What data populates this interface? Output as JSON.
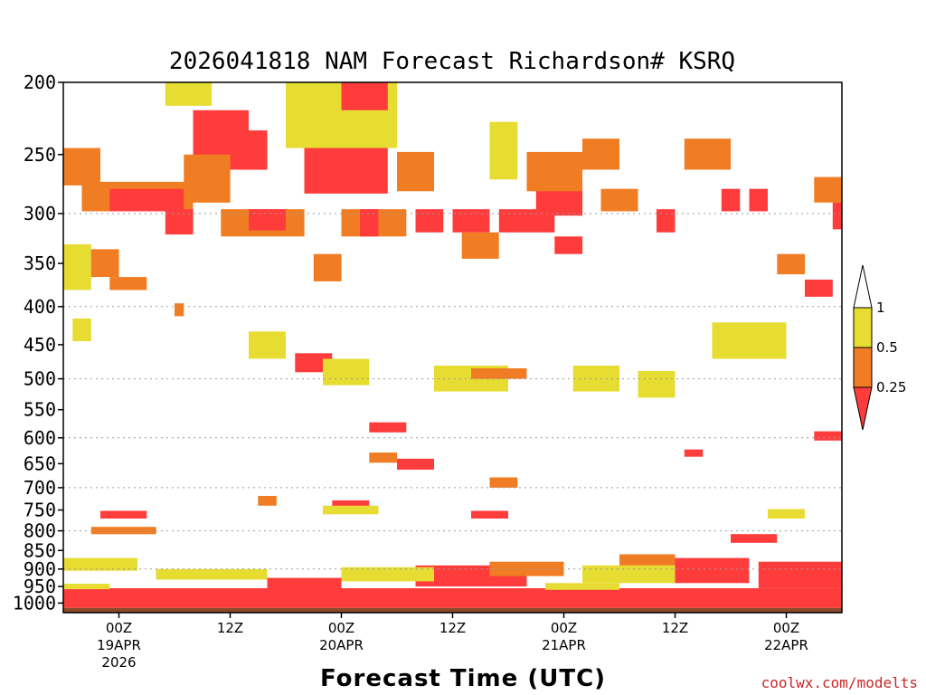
{
  "chart_data": {
    "type": "heatmap",
    "title": "2026041818 NAM Forecast Richardson# KSRQ",
    "xlabel": "Forecast Time (UTC)",
    "ylabel": "",
    "y_axis": {
      "scale": "pressure (hPa), inverted, log-like",
      "ticks": [
        200,
        250,
        300,
        350,
        400,
        450,
        500,
        550,
        600,
        650,
        700,
        750,
        800,
        850,
        900,
        950,
        1000
      ],
      "range": [
        200,
        1030
      ]
    },
    "x_axis": {
      "unit": "hours since 2026041818",
      "range": [
        0,
        84
      ],
      "ticks": [
        {
          "hour": 6,
          "label": "00Z",
          "sublabel": "19APR",
          "sublabel2": "2026"
        },
        {
          "hour": 18,
          "label": "12Z",
          "sublabel": "",
          "sublabel2": ""
        },
        {
          "hour": 30,
          "label": "00Z",
          "sublabel": "20APR",
          "sublabel2": ""
        },
        {
          "hour": 42,
          "label": "12Z",
          "sublabel": "",
          "sublabel2": ""
        },
        {
          "hour": 54,
          "label": "00Z",
          "sublabel": "21APR",
          "sublabel2": ""
        },
        {
          "hour": 66,
          "label": "12Z",
          "sublabel": "",
          "sublabel2": ""
        },
        {
          "hour": 78,
          "label": "00Z",
          "sublabel": "22APR",
          "sublabel2": ""
        }
      ]
    },
    "grid_dotted_levels": [
      300,
      400,
      500,
      600,
      700,
      800,
      900
    ],
    "colorbar": {
      "levels": [
        "1",
        "0.5",
        "0.25"
      ],
      "bins": [
        {
          "range": "> 1",
          "color": "#ffffff"
        },
        {
          "range": "0.5 - 1",
          "color": "#e6dc32"
        },
        {
          "range": "0.25 - 0.5",
          "color": "#f07d23"
        },
        {
          "range": "< 0.25",
          "color": "#ff3c3c"
        }
      ]
    },
    "colors": {
      "yellow": "#e6dc32",
      "orange": "#f07d23",
      "red": "#ff3c3c",
      "ground": "#8b4a2b"
    },
    "ground_level_hpa": 1015,
    "cells": [
      {
        "h0": 0,
        "h1": 4,
        "p0": 245,
        "p1": 275,
        "c": "orange"
      },
      {
        "h0": 2,
        "h1": 14,
        "p0": 272,
        "p1": 298,
        "c": "orange"
      },
      {
        "h0": 5,
        "h1": 13,
        "p0": 278,
        "p1": 298,
        "c": "red"
      },
      {
        "h0": 0,
        "h1": 3,
        "p0": 330,
        "p1": 380,
        "c": "yellow"
      },
      {
        "h0": 3,
        "h1": 6,
        "p0": 335,
        "p1": 365,
        "c": "orange"
      },
      {
        "h0": 5,
        "h1": 9,
        "p0": 365,
        "p1": 380,
        "c": "orange"
      },
      {
        "h0": 1,
        "h1": 3,
        "p0": 415,
        "p1": 445,
        "c": "yellow"
      },
      {
        "h0": 12,
        "h1": 13,
        "p0": 396,
        "p1": 412,
        "c": "orange"
      },
      {
        "h0": 11,
        "h1": 16,
        "p0": 200,
        "p1": 215,
        "c": "yellow"
      },
      {
        "h0": 14,
        "h1": 20,
        "p0": 218,
        "p1": 262,
        "c": "red"
      },
      {
        "h0": 13,
        "h1": 18,
        "p0": 250,
        "p1": 290,
        "c": "orange"
      },
      {
        "h0": 11,
        "h1": 14,
        "p0": 296,
        "p1": 320,
        "c": "red"
      },
      {
        "h0": 19,
        "h1": 22,
        "p0": 232,
        "p1": 262,
        "c": "red"
      },
      {
        "h0": 17,
        "h1": 26,
        "p0": 296,
        "p1": 322,
        "c": "orange"
      },
      {
        "h0": 20,
        "h1": 24,
        "p0": 296,
        "p1": 316,
        "c": "red"
      },
      {
        "h0": 26,
        "h1": 35,
        "p0": 240,
        "p1": 282,
        "c": "red"
      },
      {
        "h0": 24,
        "h1": 36,
        "p0": 200,
        "p1": 245,
        "c": "yellow"
      },
      {
        "h0": 30,
        "h1": 35,
        "p0": 200,
        "p1": 218,
        "c": "red"
      },
      {
        "h0": 27,
        "h1": 30,
        "p0": 340,
        "p1": 370,
        "c": "orange"
      },
      {
        "h0": 20,
        "h1": 24,
        "p0": 432,
        "p1": 470,
        "c": "yellow"
      },
      {
        "h0": 25,
        "h1": 29,
        "p0": 462,
        "p1": 490,
        "c": "red"
      },
      {
        "h0": 28,
        "h1": 33,
        "p0": 470,
        "p1": 510,
        "c": "yellow"
      },
      {
        "h0": 30,
        "h1": 37,
        "p0": 296,
        "p1": 322,
        "c": "orange"
      },
      {
        "h0": 32,
        "h1": 34,
        "p0": 296,
        "p1": 322,
        "c": "red"
      },
      {
        "h0": 36,
        "h1": 40,
        "p0": 248,
        "p1": 280,
        "c": "orange"
      },
      {
        "h0": 38,
        "h1": 41,
        "p0": 296,
        "p1": 318,
        "c": "red"
      },
      {
        "h0": 42,
        "h1": 46,
        "p0": 296,
        "p1": 318,
        "c": "red"
      },
      {
        "h0": 43,
        "h1": 47,
        "p0": 318,
        "p1": 345,
        "c": "orange"
      },
      {
        "h0": 46,
        "h1": 49,
        "p0": 226,
        "p1": 270,
        "c": "yellow"
      },
      {
        "h0": 47,
        "h1": 53,
        "p0": 296,
        "p1": 318,
        "c": "red"
      },
      {
        "h0": 51,
        "h1": 56,
        "p0": 272,
        "p1": 302,
        "c": "red"
      },
      {
        "h0": 53,
        "h1": 56,
        "p0": 322,
        "p1": 340,
        "c": "red"
      },
      {
        "h0": 50,
        "h1": 56,
        "p0": 248,
        "p1": 280,
        "c": "orange"
      },
      {
        "h0": 56,
        "h1": 60,
        "p0": 238,
        "p1": 262,
        "c": "orange"
      },
      {
        "h0": 58,
        "h1": 62,
        "p0": 278,
        "p1": 298,
        "c": "orange"
      },
      {
        "h0": 64,
        "h1": 66,
        "p0": 296,
        "p1": 318,
        "c": "red"
      },
      {
        "h0": 67,
        "h1": 72,
        "p0": 238,
        "p1": 262,
        "c": "orange"
      },
      {
        "h0": 71,
        "h1": 73,
        "p0": 278,
        "p1": 298,
        "c": "red"
      },
      {
        "h0": 74,
        "h1": 76,
        "p0": 278,
        "p1": 298,
        "c": "red"
      },
      {
        "h0": 77,
        "h1": 80,
        "p0": 340,
        "p1": 362,
        "c": "orange"
      },
      {
        "h0": 80,
        "h1": 83,
        "p0": 368,
        "p1": 388,
        "c": "red"
      },
      {
        "h0": 81,
        "h1": 84,
        "p0": 268,
        "p1": 290,
        "c": "orange"
      },
      {
        "h0": 83,
        "h1": 84,
        "p0": 290,
        "p1": 315,
        "c": "red"
      },
      {
        "h0": 73,
        "h1": 77,
        "p0": 422,
        "p1": 452,
        "c": "orange"
      },
      {
        "h0": 70,
        "h1": 78,
        "p0": 420,
        "p1": 470,
        "c": "yellow"
      },
      {
        "h0": 40,
        "h1": 48,
        "p0": 480,
        "p1": 520,
        "c": "yellow"
      },
      {
        "h0": 44,
        "h1": 50,
        "p0": 484,
        "p1": 500,
        "c": "orange"
      },
      {
        "h0": 55,
        "h1": 60,
        "p0": 480,
        "p1": 520,
        "c": "yellow"
      },
      {
        "h0": 62,
        "h1": 66,
        "p0": 488,
        "p1": 530,
        "c": "yellow"
      },
      {
        "h0": 33,
        "h1": 37,
        "p0": 572,
        "p1": 590,
        "c": "red"
      },
      {
        "h0": 36,
        "h1": 40,
        "p0": 640,
        "p1": 662,
        "c": "red"
      },
      {
        "h0": 33,
        "h1": 36,
        "p0": 628,
        "p1": 648,
        "c": "orange"
      },
      {
        "h0": 46,
        "h1": 49,
        "p0": 678,
        "p1": 700,
        "c": "orange"
      },
      {
        "h0": 21,
        "h1": 23,
        "p0": 718,
        "p1": 740,
        "c": "orange"
      },
      {
        "h0": 29,
        "h1": 33,
        "p0": 728,
        "p1": 750,
        "c": "red"
      },
      {
        "h0": 28,
        "h1": 34,
        "p0": 740,
        "p1": 760,
        "c": "yellow"
      },
      {
        "h0": 4,
        "h1": 9,
        "p0": 752,
        "p1": 770,
        "c": "red"
      },
      {
        "h0": 3,
        "h1": 10,
        "p0": 790,
        "p1": 808,
        "c": "orange"
      },
      {
        "h0": 44,
        "h1": 48,
        "p0": 752,
        "p1": 770,
        "c": "red"
      },
      {
        "h0": 72,
        "h1": 77,
        "p0": 808,
        "p1": 830,
        "c": "red"
      },
      {
        "h0": 76,
        "h1": 80,
        "p0": 748,
        "p1": 770,
        "c": "yellow"
      },
      {
        "h0": 81,
        "h1": 84,
        "p0": 588,
        "p1": 605,
        "c": "red"
      },
      {
        "h0": 67,
        "h1": 69,
        "p0": 622,
        "p1": 636,
        "c": "red"
      },
      {
        "h0": 0,
        "h1": 84,
        "p0": 955,
        "p1": 1015,
        "c": "red"
      },
      {
        "h0": 22,
        "h1": 30,
        "p0": 925,
        "p1": 960,
        "c": "red"
      },
      {
        "h0": 38,
        "h1": 50,
        "p0": 890,
        "p1": 950,
        "c": "red"
      },
      {
        "h0": 46,
        "h1": 54,
        "p0": 880,
        "p1": 920,
        "c": "orange"
      },
      {
        "h0": 66,
        "h1": 74,
        "p0": 870,
        "p1": 940,
        "c": "red"
      },
      {
        "h0": 75,
        "h1": 84,
        "p0": 880,
        "p1": 955,
        "c": "red"
      },
      {
        "h0": 0,
        "h1": 8,
        "p0": 870,
        "p1": 905,
        "c": "yellow"
      },
      {
        "h0": 10,
        "h1": 22,
        "p0": 900,
        "p1": 930,
        "c": "yellow"
      },
      {
        "h0": 30,
        "h1": 40,
        "p0": 895,
        "p1": 935,
        "c": "yellow"
      },
      {
        "h0": 56,
        "h1": 66,
        "p0": 890,
        "p1": 940,
        "c": "yellow"
      },
      {
        "h0": 60,
        "h1": 66,
        "p0": 860,
        "p1": 890,
        "c": "orange"
      },
      {
        "h0": 52,
        "h1": 60,
        "p0": 940,
        "p1": 960,
        "c": "yellow"
      },
      {
        "h0": 0,
        "h1": 5,
        "p0": 942,
        "p1": 958,
        "c": "yellow"
      }
    ]
  },
  "credit": "coolwx.com/modelts"
}
